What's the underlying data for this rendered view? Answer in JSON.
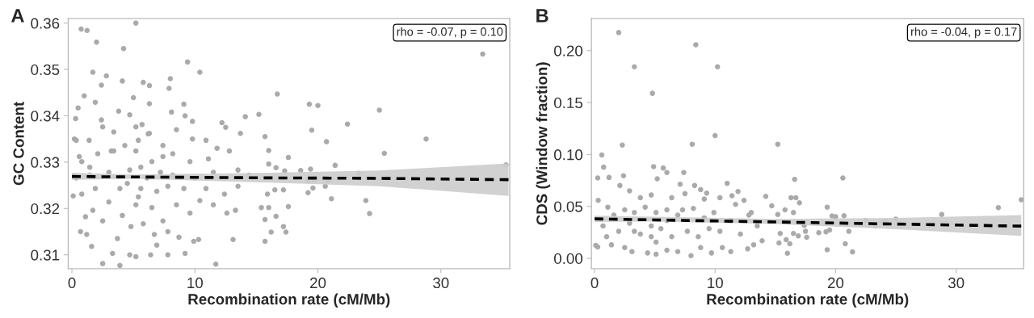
{
  "chart_data": [
    {
      "type": "scatter",
      "title": "A",
      "xlabel": "Recombination rate (cM/Mb)",
      "ylabel": "GC Content",
      "annotations": [
        "rho = -0.07, p = 0.10"
      ],
      "xlim": [
        -0.3,
        35.6
      ],
      "ylim": [
        0.307,
        0.361
      ],
      "xticks": [
        0,
        10,
        20,
        30
      ],
      "yticks": [
        0.31,
        0.32,
        0.33,
        0.34,
        0.35,
        0.36
      ],
      "grid": false,
      "legend": false,
      "series": [
        {
          "marker": "circle",
          "color": "#aaaaaa",
          "x": [
            0.75,
            1.23,
            2.0,
            5.2,
            4.2,
            9.4,
            10.4,
            1.7,
            2.8,
            4.1,
            2.4,
            5.8,
            6.3,
            8.0,
            7.9,
            5.0,
            1.0,
            1.9,
            6.3,
            9.1,
            0.5,
            3.8,
            8.1,
            9.2,
            9.8,
            0.3,
            2.4,
            4.7,
            5.2,
            5.7,
            8.5,
            12.2,
            12.5,
            14.1,
            15.2,
            13.7,
            10.9,
            9.8,
            0.2,
            1.4,
            3.2,
            6.2,
            7.4,
            0.8,
            0.1,
            0.7,
            1.2,
            1.6,
            2.5,
            3.9,
            3.3,
            4.7,
            5.2,
            6.4,
            7.8,
            9.2,
            11.7,
            9.9,
            10.3,
            13.1,
            6.9,
            3.7,
            4.8,
            6.7,
            7.8,
            8.7,
            7.4,
            5.8,
            2.5,
            1.1,
            4.1,
            1.7,
            3.0,
            5.2,
            6.5,
            8.5,
            9.6,
            10.4,
            11.5,
            12.6,
            13.3,
            0.8,
            1.9,
            3.9,
            5.6,
            6.9,
            7.8,
            9.1,
            10.9,
            12.4,
            13.5,
            0.35,
            1.45,
            3.0,
            4.7,
            5.6,
            6.5,
            7.4,
            8.2,
            9.6,
            11.1,
            11.8,
            12.8,
            0.6,
            2.1,
            3.4,
            4.3,
            5.4,
            6.3,
            2.5,
            3.4,
            0.35,
            1.45,
            8.2,
            10.0,
            11.5,
            13.5,
            14.4,
            5.2,
            6.1,
            4.5,
            5.4,
            7.2,
            33.4,
            16.7,
            19.3,
            20.0,
            25.0,
            19.5,
            22.4,
            20.7,
            28.8,
            25.4,
            15.7,
            16.0,
            17.6,
            21.4,
            35.3,
            23.3,
            18.6,
            19.4,
            17.3,
            16.0,
            16.6,
            19.2,
            19.7,
            20.8,
            20.6,
            21.1,
            19.2,
            19.6,
            17.2,
            16.5,
            15.9,
            15.4,
            16.0,
            17.6,
            15.7,
            16.6,
            17.2,
            17.4,
            16.2,
            15.7,
            23.9,
            24.2
          ],
          "values": [
            0.3587,
            0.3584,
            0.3559,
            0.36,
            0.3545,
            0.3516,
            0.3494,
            0.3494,
            0.3486,
            0.3475,
            0.3466,
            0.3472,
            0.3465,
            0.348,
            0.3459,
            0.3439,
            0.3443,
            0.3429,
            0.3426,
            0.3425,
            0.3417,
            0.341,
            0.3408,
            0.34,
            0.3388,
            0.3394,
            0.3391,
            0.3402,
            0.3376,
            0.3381,
            0.337,
            0.3385,
            0.3375,
            0.3398,
            0.3403,
            0.3362,
            0.3347,
            0.335,
            0.335,
            0.3347,
            0.3324,
            0.3361,
            0.3336,
            0.3301,
            0.3227,
            0.315,
            0.3144,
            0.3118,
            0.3081,
            0.3077,
            0.3103,
            0.31,
            0.3096,
            0.31,
            0.31,
            0.3103,
            0.308,
            0.3129,
            0.3133,
            0.3133,
            0.3121,
            0.3135,
            0.3161,
            0.3144,
            0.315,
            0.3138,
            0.3173,
            0.3167,
            0.3173,
            0.3182,
            0.3185,
            0.3196,
            0.3214,
            0.3208,
            0.3202,
            0.3208,
            0.319,
            0.3217,
            0.3208,
            0.319,
            0.3196,
            0.3231,
            0.3243,
            0.3243,
            0.3243,
            0.3237,
            0.3248,
            0.3243,
            0.3243,
            0.3231,
            0.3248,
            0.3266,
            0.3272,
            0.3278,
            0.3283,
            0.3289,
            0.3301,
            0.3312,
            0.3318,
            0.3301,
            0.3307,
            0.333,
            0.3324,
            0.3312,
            0.3318,
            0.3324,
            0.3336,
            0.3347,
            0.3362,
            0.3376,
            0.3365,
            0.3347,
            0.3289,
            0.3272,
            0.3266,
            0.3278,
            0.3283,
            0.3272,
            0.3324,
            0.3266,
            0.3254,
            0.3225,
            0.3278,
            0.3533,
            0.3447,
            0.3425,
            0.3422,
            0.3412,
            0.3369,
            0.3382,
            0.3344,
            0.335,
            0.3319,
            0.3355,
            0.3325,
            0.331,
            0.3293,
            0.3294,
            0.3276,
            0.3282,
            0.3285,
            0.3281,
            0.3296,
            0.3288,
            0.326,
            0.3261,
            0.326,
            0.3248,
            0.3221,
            0.3234,
            0.3244,
            0.324,
            0.324,
            0.3231,
            0.3202,
            0.3202,
            0.3204,
            0.3176,
            0.3183,
            0.3161,
            0.3149,
            0.3149,
            0.3129,
            0.3217,
            0.3189
          ]
        },
        {
          "type": "line",
          "marker": "none",
          "line_style": "dashed",
          "color": "#000000",
          "x": [
            0,
            5,
            16,
            25,
            35.5
          ],
          "values": [
            0.3269,
            0.3268,
            0.3266,
            0.3265,
            0.3262
          ],
          "lower": [
            0.3262,
            0.3264,
            0.3256,
            0.3248,
            0.3227
          ],
          "upper": [
            0.3277,
            0.3273,
            0.3277,
            0.3282,
            0.3297
          ]
        }
      ]
    },
    {
      "type": "scatter",
      "title": "B",
      "xlabel": "Recombination rate (cM/Mb)",
      "ylabel": "CDS (Window fraction)",
      "annotations": [
        "rho = -0.04, p = 0.17"
      ],
      "xlim": [
        -0.26,
        35.6
      ],
      "ylim": [
        -0.01,
        0.231
      ],
      "xticks": [
        0,
        10,
        20,
        30
      ],
      "yticks": [
        {
          "value": 0,
          "label": "0.00"
        },
        {
          "value": 0.05,
          "label": "0.05"
        },
        {
          "value": 0.1,
          "label": "0.10"
        },
        {
          "value": 0.15,
          "label": "0.15"
        },
        {
          "value": 0.2,
          "label": "0.20"
        }
      ],
      "grid": false,
      "legend": false,
      "series": [
        {
          "marker": "circle",
          "color": "#aaaaaa",
          "x": [
            2.0,
            8.4,
            3.3,
            10.2,
            4.8,
            10.0,
            8.1,
            2.3,
            15.2,
            0.6,
            0.26,
            0.75,
            1.2,
            2.4,
            4.9,
            5.7,
            6.0,
            7.4,
            5.2,
            11.0,
            7.1,
            8.3,
            8.8,
            9.3,
            11.9,
            11.4,
            14.2,
            0.3,
            2.1,
            2.9,
            3.8,
            4.7,
            6.4,
            7.5,
            9.1,
            10.4,
            12.4,
            14.7,
            0.1,
            0.26,
            1.0,
            1.4,
            2.5,
            3.1,
            4.4,
            5.1,
            6.0,
            6.9,
            8.0,
            8.8,
            9.7,
            10.6,
            11.3,
            12.7,
            13.2,
            13.9,
            0.7,
            1.6,
            2.0,
            2.9,
            3.8,
            4.7,
            5.1,
            5.5,
            6.4,
            6.9,
            7.7,
            8.6,
            9.5,
            10.4,
            11.3,
            12.1,
            12.8,
            13.5,
            1.1,
            2.5,
            3.3,
            4.2,
            5.1,
            6.0,
            7.3,
            8.2,
            9.9,
            11.7,
            13.0,
            4.7,
            6.0,
            9.1,
            3.3,
            16.6,
            20.6,
            35.4,
            33.5,
            28.8,
            16.3,
            16.7,
            17.0,
            19.3,
            19.7,
            20.0,
            20.7,
            15.2,
            15.8,
            16.5,
            23.9,
            25.0,
            24.2,
            22.5,
            23.3,
            21.1,
            19.2,
            19.5,
            18.6,
            17.6,
            16.9,
            16.5,
            15.4,
            15.3,
            15.9,
            16.2,
            16.0,
            19.3,
            20.8,
            21.4,
            17.4,
            17.5
          ],
          "values": [
            0.2174,
            0.2057,
            0.1844,
            0.1844,
            0.1589,
            0.1182,
            0.1099,
            0.1091,
            0.1099,
            0.0995,
            0.0774,
            0.0878,
            0.0779,
            0.0795,
            0.0883,
            0.087,
            0.0826,
            0.0826,
            0.0766,
            0.0722,
            0.0714,
            0.0701,
            0.0662,
            0.0628,
            0.0644,
            0.0603,
            0.0597,
            0.0558,
            0.0701,
            0.0649,
            0.0584,
            0.061,
            0.0584,
            0.0623,
            0.0571,
            0.0584,
            0.0558,
            0.0506,
            0.0125,
            0.0109,
            0.0208,
            0.013,
            0.0104,
            0.0065,
            0.0052,
            0.0039,
            0.0078,
            0.0065,
            0.0026,
            0.0104,
            0.0052,
            0.0104,
            0.0065,
            0.0091,
            0.013,
            0.0169,
            0.0312,
            0.0416,
            0.026,
            0.0338,
            0.0234,
            0.0208,
            0.0156,
            0.0286,
            0.0208,
            0.0416,
            0.026,
            0.0208,
            0.0286,
            0.026,
            0.0364,
            0.0234,
            0.0416,
            0.0312,
            0.0493,
            0.0467,
            0.0441,
            0.0493,
            0.0441,
            0.0467,
            0.0467,
            0.048,
            0.0441,
            0.0519,
            0.0441,
            0.0312,
            0.0364,
            0.039,
            0.026,
            0.0761,
            0.0774,
            0.0564,
            0.0488,
            0.0423,
            0.0584,
            0.0584,
            0.0535,
            0.0493,
            0.0408,
            0.04,
            0.041,
            0.0423,
            0.0467,
            0.0441,
            0.0345,
            0.0377,
            0.0356,
            0.0364,
            0.0312,
            0.026,
            0.0255,
            0.0273,
            0.0247,
            0.0203,
            0.0216,
            0.0239,
            0.0239,
            0.0148,
            0.0179,
            0.014,
            0.0049,
            0.0083,
            0.014,
            0.0062,
            0.0317,
            0.026
          ]
        },
        {
          "type": "line",
          "marker": "none",
          "line_style": "dashed",
          "color": "#000000",
          "x": [
            0,
            5,
            15,
            25,
            35.4
          ],
          "values": [
            0.038,
            0.037,
            0.035,
            0.033,
            0.031
          ],
          "lower": [
            0.035,
            0.0355,
            0.033,
            0.028,
            0.0216
          ],
          "upper": [
            0.041,
            0.04,
            0.038,
            0.039,
            0.0416
          ]
        }
      ]
    }
  ]
}
